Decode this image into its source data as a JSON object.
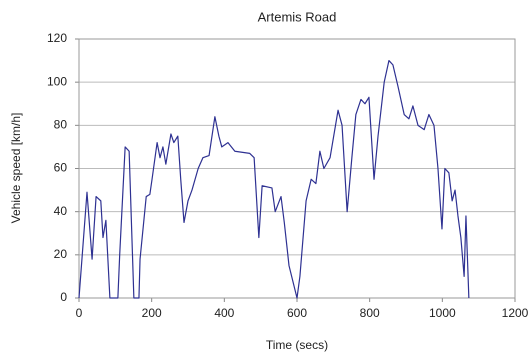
{
  "chart_data": {
    "type": "line",
    "title": "Artemis Road",
    "x_label": "Time (secs)",
    "y_label": "Vehicle speed [km/h]",
    "x": [
      0,
      22,
      36,
      47,
      60,
      66,
      74,
      85,
      95,
      107,
      112,
      127,
      138,
      151,
      165,
      168,
      185,
      195,
      201,
      215,
      223,
      231,
      239,
      253,
      261,
      272,
      280,
      289,
      300,
      311,
      328,
      341,
      358,
      374,
      385,
      393,
      410,
      429,
      470,
      482,
      495,
      504,
      531,
      540,
      556,
      565,
      578,
      600,
      608,
      625,
      639,
      652,
      663,
      674,
      691,
      713,
      724,
      738,
      751,
      762,
      776,
      787,
      798,
      812,
      823,
      840,
      853,
      864,
      878,
      895,
      908,
      919,
      933,
      950,
      963,
      977,
      988,
      999,
      1007,
      1018,
      1027,
      1035,
      1043,
      1051,
      1060,
      1065,
      1073
    ],
    "series": [
      {
        "name": "Vehicle speed",
        "color": "#2e3192",
        "values": [
          0,
          49,
          18,
          47,
          45,
          28,
          36,
          0,
          0,
          0,
          20,
          70,
          68,
          0,
          0,
          18,
          47,
          48,
          55,
          72,
          65,
          70,
          62,
          76,
          72,
          75,
          55,
          35,
          45,
          50,
          60,
          65,
          66,
          84,
          75,
          70,
          72,
          68,
          67,
          65,
          28,
          52,
          51,
          40,
          47,
          35,
          15,
          0,
          10,
          45,
          55,
          53,
          68,
          60,
          65,
          87,
          80,
          40,
          65,
          85,
          92,
          90,
          93,
          55,
          75,
          100,
          110,
          108,
          98,
          85,
          83,
          89,
          80,
          78,
          85,
          80,
          60,
          32,
          60,
          58,
          45,
          50,
          38,
          28,
          10,
          38,
          0
        ]
      }
    ],
    "xlim": [
      0,
      1200
    ],
    "xticks": [
      0,
      200,
      400,
      600,
      800,
      1000,
      1200
    ],
    "ylim": [
      0,
      120
    ],
    "yticks": [
      0,
      20,
      40,
      60,
      80,
      100,
      120
    ],
    "grid": true
  }
}
